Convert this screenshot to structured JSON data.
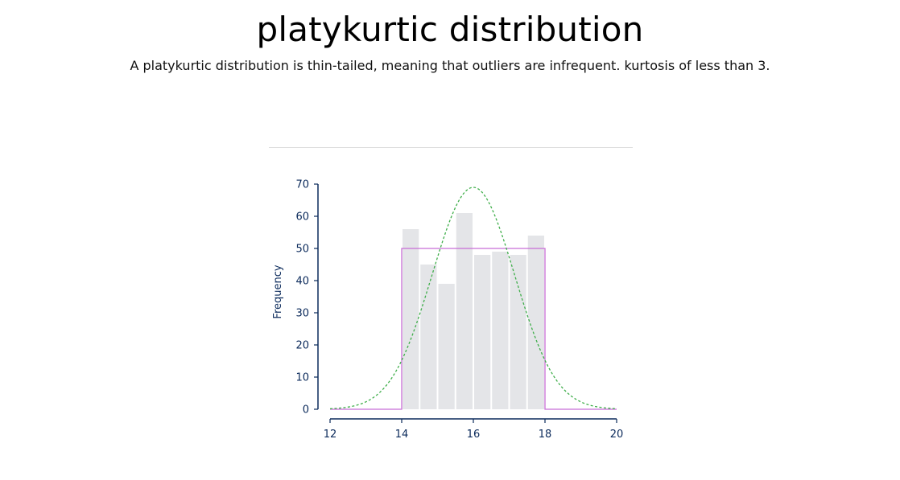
{
  "header": {
    "title": "platykurtic distribution",
    "subtitle": "A platykurtic distribution is thin-tailed, meaning that outliers are infrequent. kurtosis of less than 3."
  },
  "colors": {
    "axis": "#0b2a5b",
    "bars": "#e4e5e8",
    "uniform_line": "#c86ed6",
    "normal_curve": "#3fae4a"
  },
  "chart_data": {
    "type": "bar",
    "ylabel": "Frequency",
    "xlabel": "",
    "xlim": [
      12,
      20
    ],
    "ylim": [
      0,
      70
    ],
    "xticks": [
      12,
      14,
      16,
      18,
      20
    ],
    "yticks": [
      0,
      10,
      20,
      30,
      40,
      50,
      60,
      70
    ],
    "grid": false,
    "bins": [
      {
        "start": 14.0,
        "end": 14.5,
        "value": 56
      },
      {
        "start": 14.5,
        "end": 15.0,
        "value": 45
      },
      {
        "start": 15.0,
        "end": 15.5,
        "value": 39
      },
      {
        "start": 15.5,
        "end": 16.0,
        "value": 61
      },
      {
        "start": 16.0,
        "end": 16.5,
        "value": 48
      },
      {
        "start": 16.5,
        "end": 17.0,
        "value": 49
      },
      {
        "start": 17.0,
        "end": 17.5,
        "value": 48
      },
      {
        "start": 17.5,
        "end": 18.0,
        "value": 54
      }
    ],
    "overlays": [
      {
        "kind": "uniform",
        "style": "solid",
        "points": [
          [
            12,
            0
          ],
          [
            14,
            0
          ],
          [
            14,
            50
          ],
          [
            18,
            50
          ],
          [
            18,
            0
          ],
          [
            20,
            0
          ]
        ]
      },
      {
        "kind": "normal",
        "style": "dotted",
        "mean": 16,
        "sd": 1.15,
        "peak": 69
      }
    ]
  }
}
